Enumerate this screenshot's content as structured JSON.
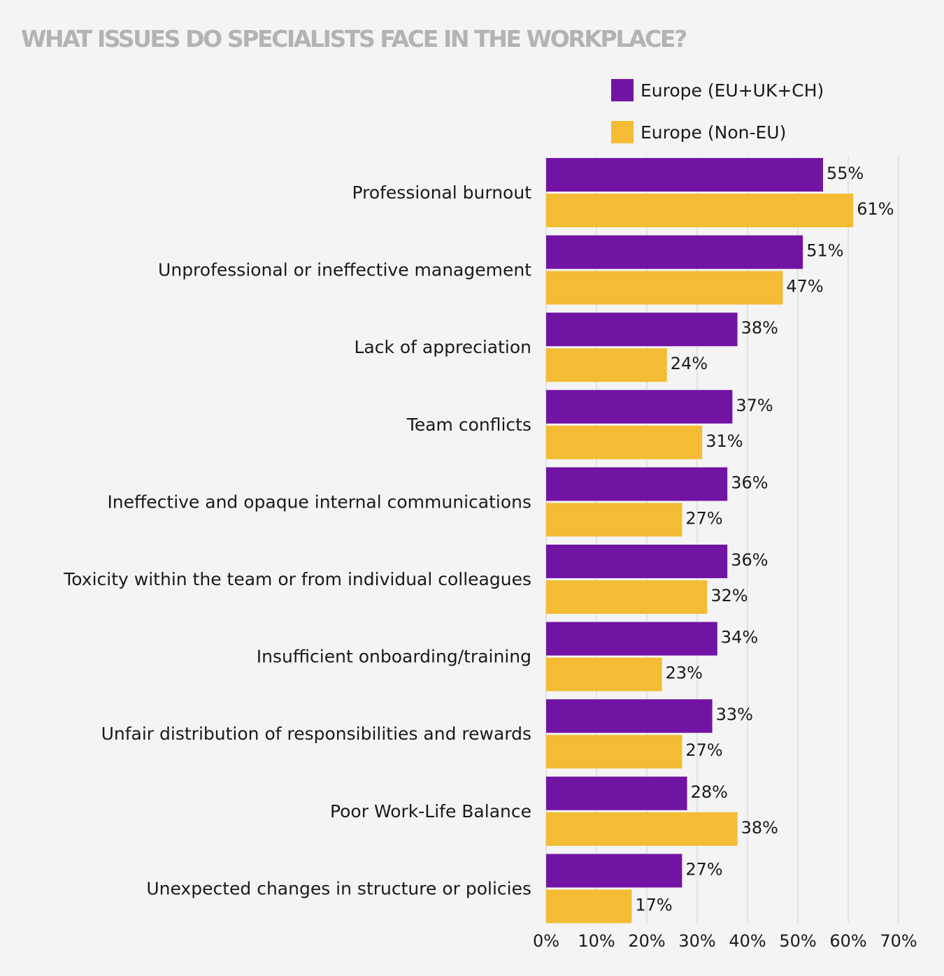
{
  "chart_data": {
    "type": "bar",
    "orientation": "horizontal",
    "title": "WHAT ISSUES DO SPECIALISTS FACE IN THE WORKPLACE?",
    "categories": [
      "Professional burnout",
      "Unprofessional or ineffective management",
      "Lack of appreciation",
      "Team conflicts",
      "Ineffective and opaque internal communications",
      "Toxicity within the team or from individual colleagues",
      "Insufficient onboarding/training",
      "Unfair distribution of responsibilities and rewards",
      "Poor Work-Life Balance",
      "Unexpected changes in structure or policies"
    ],
    "series": [
      {
        "name": "Europe (EU+UK+CH)",
        "color": "#7214a3",
        "values": [
          55,
          51,
          38,
          37,
          36,
          36,
          34,
          33,
          28,
          27
        ],
        "labels": [
          "55%",
          "51%",
          "38%",
          "37%",
          "36%",
          "36%",
          "34%",
          "33%",
          "28%",
          "27%"
        ]
      },
      {
        "name": "Europe (Non-EU)",
        "color": "#f4bc34",
        "values": [
          61,
          47,
          24,
          31,
          27,
          32,
          23,
          27,
          38,
          17
        ],
        "labels": [
          "61%",
          "47%",
          "24%",
          "31%",
          "27%",
          "32%",
          "23%",
          "27%",
          "38%",
          "17%"
        ]
      }
    ],
    "xlim": [
      0,
      70
    ],
    "xticks": [
      0,
      10,
      20,
      30,
      40,
      50,
      60,
      70
    ],
    "xtick_labels": [
      "0%",
      "10%",
      "20%",
      "30%",
      "40%",
      "50%",
      "60%",
      "70%"
    ],
    "xlabel": "",
    "ylabel": "",
    "grid": "vertical",
    "legend_position": "top-right"
  }
}
